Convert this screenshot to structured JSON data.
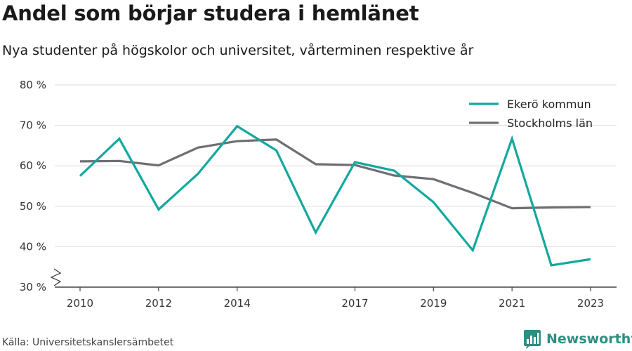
{
  "title": "Andel som börjar studera i hemlänet",
  "subtitle": "Nya studenter på högskolor och universitet, vårterminen respektive år",
  "source": "Källa: Universitetskanslersämbetet",
  "brand": {
    "name": "Newsworthy",
    "icon": "bar-chart-logo-icon",
    "color": "#2c8f82"
  },
  "chart_data": {
    "type": "line",
    "x": [
      2010,
      2011,
      2012,
      2013,
      2014,
      2015,
      2016,
      2017,
      2018,
      2019,
      2020,
      2021,
      2022,
      2023
    ],
    "x_tick_labels": [
      "2010",
      "2012",
      "2014",
      "2017",
      "2019",
      "2021",
      "2023"
    ],
    "ylim": [
      30,
      80
    ],
    "y_tick_labels": [
      "30 %",
      "40 %",
      "50 %",
      "60 %",
      "70 %",
      "80 %"
    ],
    "y_axis_break": true,
    "grid": true,
    "legend_position": "top-right",
    "series": [
      {
        "name": "Ekerö kommun",
        "color": "#13a89e",
        "values": [
          57.5,
          66.7,
          49.2,
          58.0,
          69.8,
          63.8,
          43.5,
          60.9,
          58.8,
          51.0,
          39.1,
          66.7,
          35.4,
          36.9
        ]
      },
      {
        "name": "Stockholms län",
        "color": "#6f6e74",
        "values": [
          61.1,
          61.2,
          60.1,
          64.5,
          66.1,
          66.5,
          60.4,
          60.2,
          57.6,
          56.7,
          53.3,
          49.5,
          49.7,
          49.8
        ]
      }
    ]
  }
}
